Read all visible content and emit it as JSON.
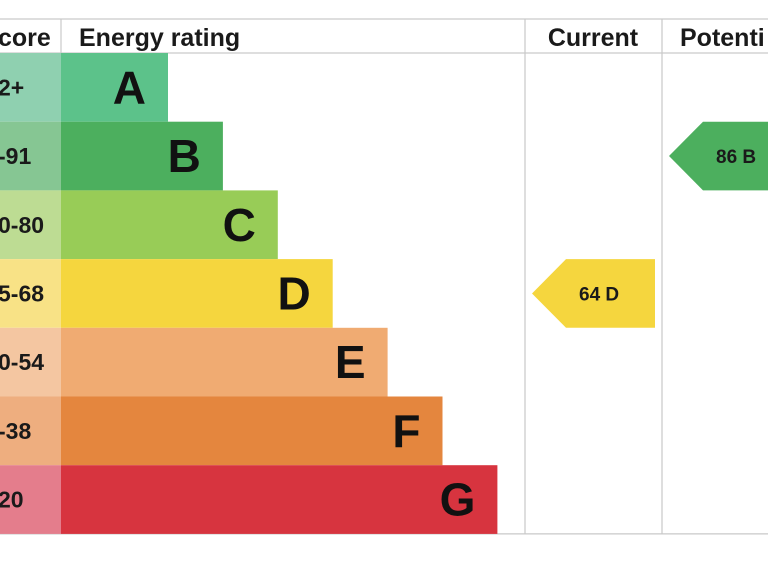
{
  "chart_data": {
    "type": "bar",
    "headers": {
      "score": "core",
      "rating": "Energy rating",
      "current": "Current",
      "potential": "Potenti"
    },
    "bands": [
      {
        "letter": "A",
        "range": "2+",
        "color": "#5cc28a",
        "light": "#8fd0b0"
      },
      {
        "letter": "B",
        "range": "-91",
        "color": "#4caf5e",
        "light": "#86c693"
      },
      {
        "letter": "C",
        "range": "0-80",
        "color": "#98cc57",
        "light": "#bddc93"
      },
      {
        "letter": "D",
        "range": "5-68",
        "color": "#f5d63e",
        "light": "#f8e286"
      },
      {
        "letter": "E",
        "range": "0-54",
        "color": "#f0ab72",
        "light": "#f4c6a1"
      },
      {
        "letter": "F",
        "range": "-38",
        "color": "#e4863e",
        "light": "#eeae7f"
      },
      {
        "letter": "G",
        "range": "20",
        "color": "#d7343f",
        "light": "#e47d8c"
      }
    ],
    "current": {
      "value": 64,
      "band": "D",
      "label": "64  D"
    },
    "potential": {
      "value": 86,
      "band": "B",
      "label": "86  B"
    }
  }
}
